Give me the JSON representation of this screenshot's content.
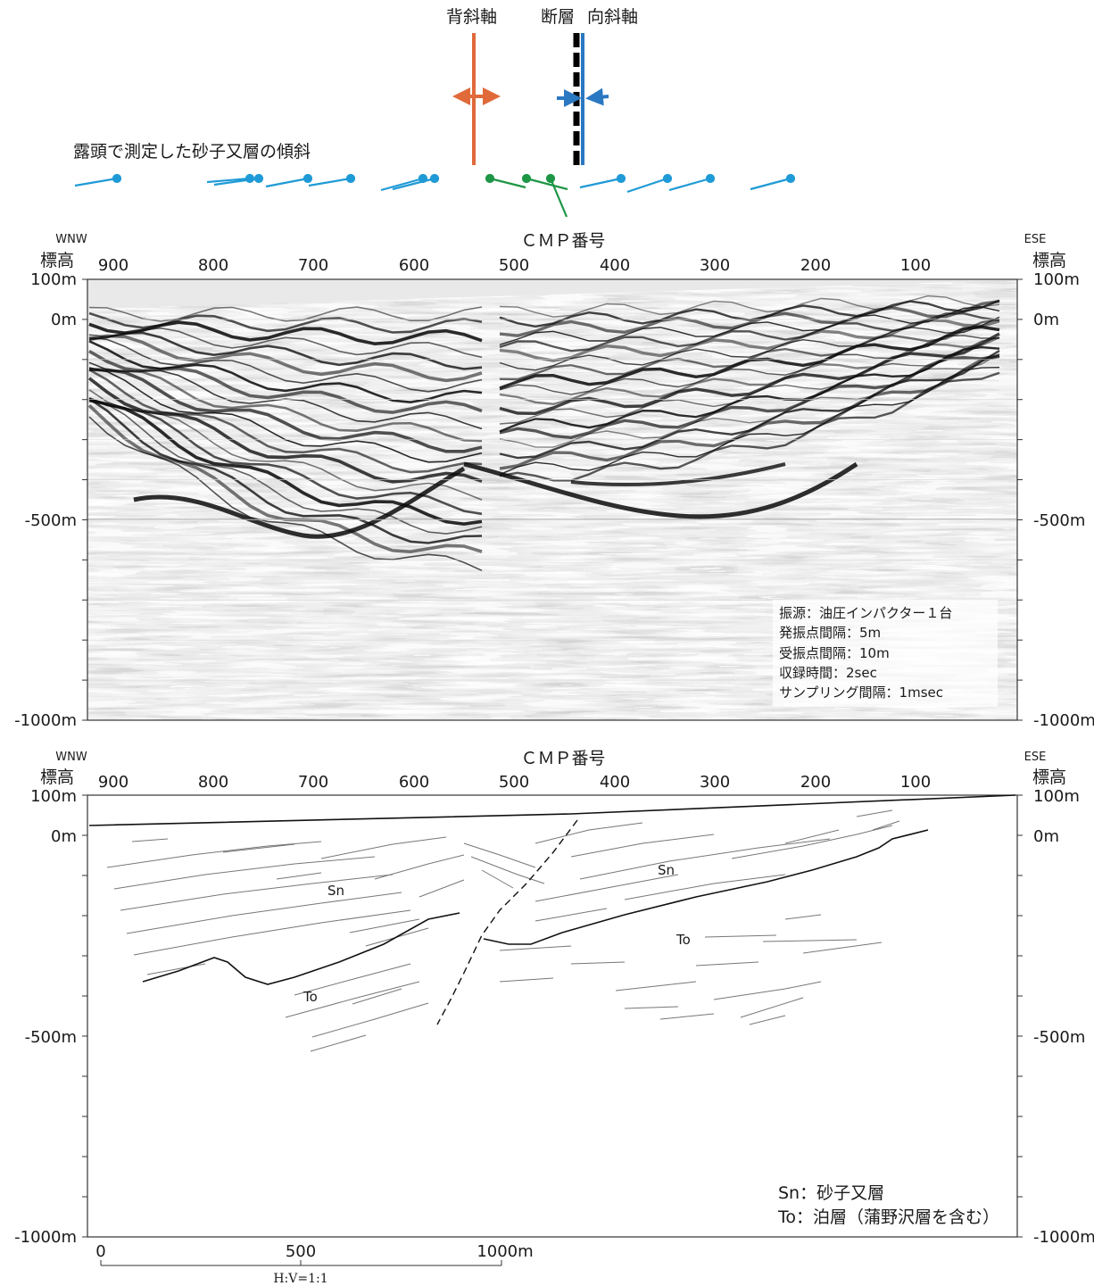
{
  "top_annotations": {
    "anticline_label": "背斜軸",
    "fault_label": "断層",
    "syncline_label": "向斜軸",
    "outcrop_dip_label": "露頭で測定した砂子又層の傾斜",
    "colors": {
      "anticline": "#e06a3a",
      "syncline": "#2a78c2",
      "fault": "#000000",
      "dip_blue": "#1f9ad6",
      "dip_green": "#1e9646"
    }
  },
  "seismic_section": {
    "axis_title": "ＣＭＰ番号",
    "left_direction": "WNW",
    "right_direction": "ESE",
    "elevation_label": "標高",
    "cmp_ticks": [
      "900",
      "800",
      "700",
      "600",
      "500",
      "400",
      "300",
      "200",
      "100"
    ],
    "depth_ticks": [
      "100m",
      "0m",
      "-500m",
      "-1000m"
    ],
    "acquisition_notes": [
      "振源：油圧インパクター１台",
      "発振点間隔：5m",
      "受振点間隔：10m",
      "収録時間：2sec",
      "サンプリング間隔：1msec"
    ]
  },
  "interpretation_section": {
    "axis_title": "ＣＭＰ番号",
    "left_direction": "WNW",
    "right_direction": "ESE",
    "elevation_label": "標高",
    "cmp_ticks": [
      "900",
      "800",
      "700",
      "600",
      "500",
      "400",
      "300",
      "200",
      "100"
    ],
    "depth_ticks": [
      "100m",
      "0m",
      "-500m",
      "-1000m"
    ],
    "unit_labels": [
      "Sn",
      "Sn",
      "To",
      "To"
    ],
    "legend": [
      "Sn：砂子又層",
      "To：泊層（蒲野沢層を含む）"
    ]
  },
  "scale_bar": {
    "ticks": [
      "0",
      "500",
      "1000m"
    ],
    "ratio": "H:V=1:1"
  }
}
